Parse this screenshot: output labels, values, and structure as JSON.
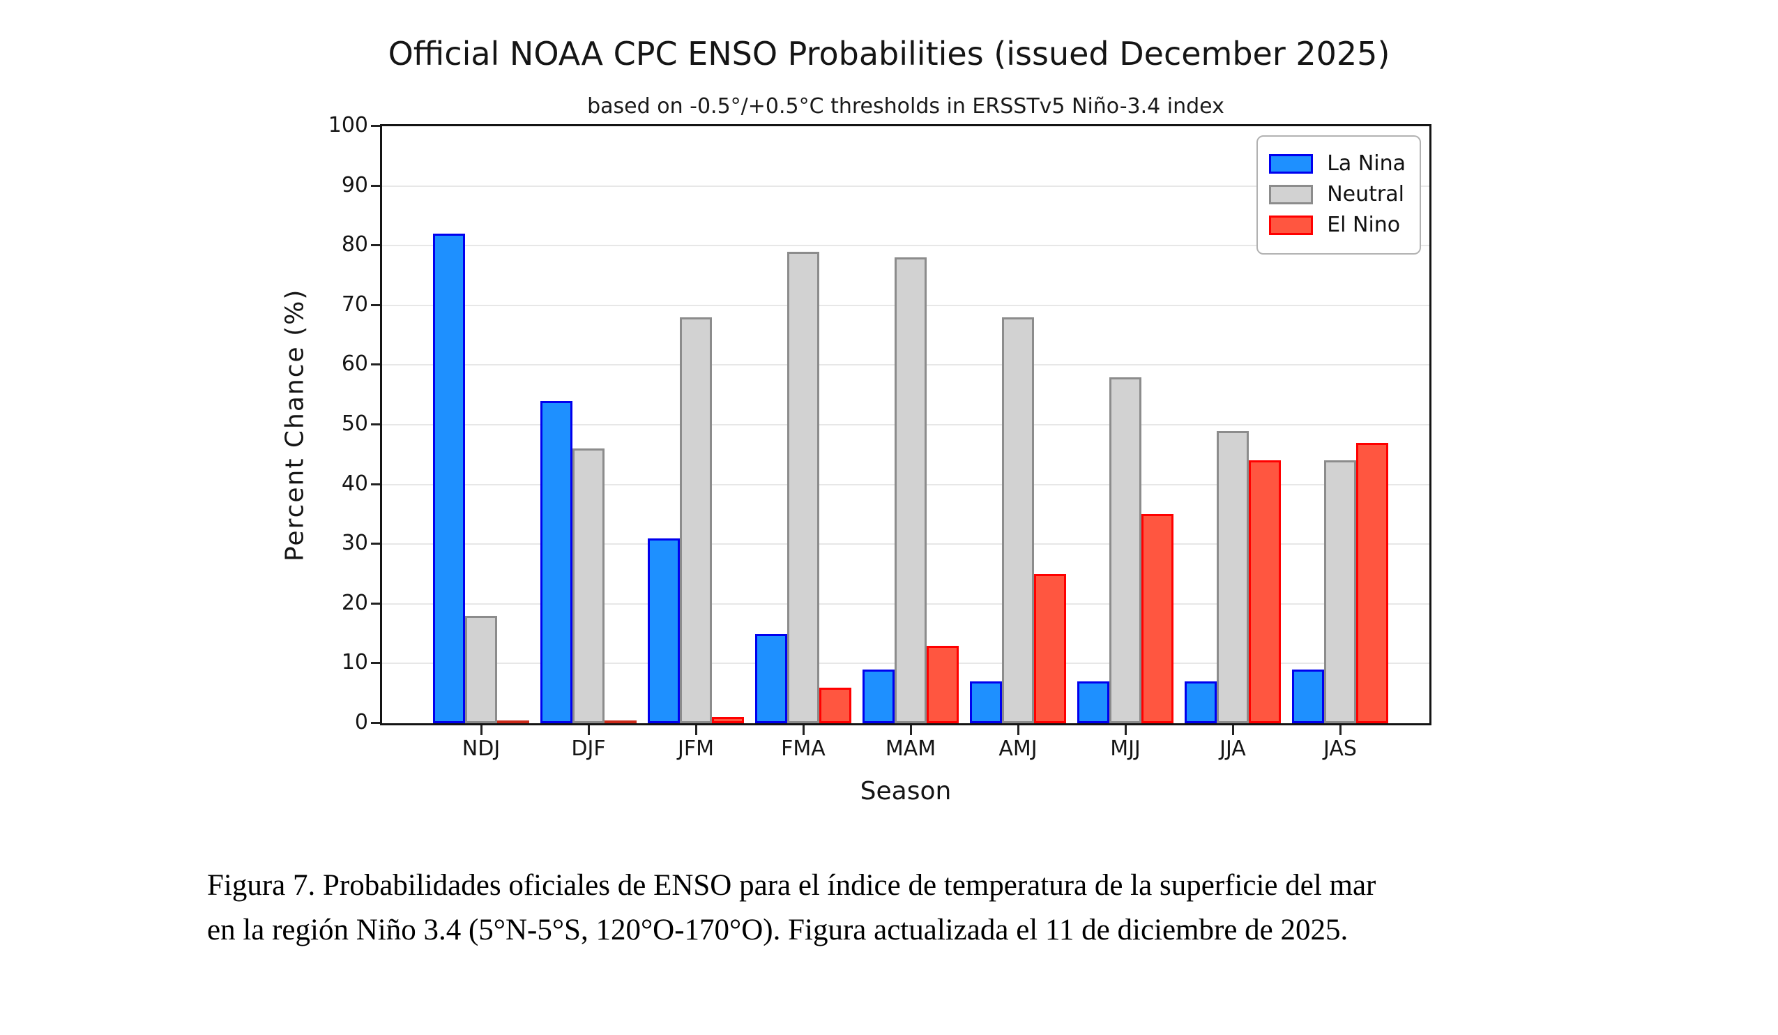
{
  "chart_data": {
    "type": "bar",
    "title": "Official NOAA CPC ENSO Probabilities (issued December 2025)",
    "subtitle": "based on -0.5°/+0.5°C thresholds in ERSSTv5 Niño-3.4 index",
    "categories": [
      "NDJ",
      "DJF",
      "JFM",
      "FMA",
      "MAM",
      "AMJ",
      "MJJ",
      "JJA",
      "JAS"
    ],
    "series": [
      {
        "name": "La Nina",
        "fill": "#1E90FF",
        "edge": "#0000EE",
        "values": [
          82,
          54,
          31,
          15,
          9,
          7,
          7,
          7,
          9
        ]
      },
      {
        "name": "Neutral",
        "fill": "#D2D2D2",
        "edge": "#8C8C8C",
        "values": [
          18,
          46,
          68,
          79,
          78,
          68,
          58,
          49,
          44
        ]
      },
      {
        "name": "El Nino",
        "fill": "#FF5640",
        "edge": "#FF0000",
        "values": [
          0,
          0,
          1,
          6,
          13,
          25,
          35,
          44,
          47
        ]
      }
    ],
    "xlabel": "Season",
    "ylabel": "Percent Chance (%)",
    "ylim": [
      0,
      100
    ],
    "yticks": [
      0,
      10,
      20,
      30,
      40,
      50,
      60,
      70,
      80,
      90,
      100
    ],
    "grid": true,
    "legend_position": "top-right"
  },
  "caption": {
    "lines": [
      "Figura 7. Probabilidades oficiales de ENSO para el índice de temperatura de la superficie del mar",
      "en la región Niño 3.4 (5°N-5°S, 120°O-170°O). Figura actualizada el 11 de diciembre de 2025."
    ]
  }
}
